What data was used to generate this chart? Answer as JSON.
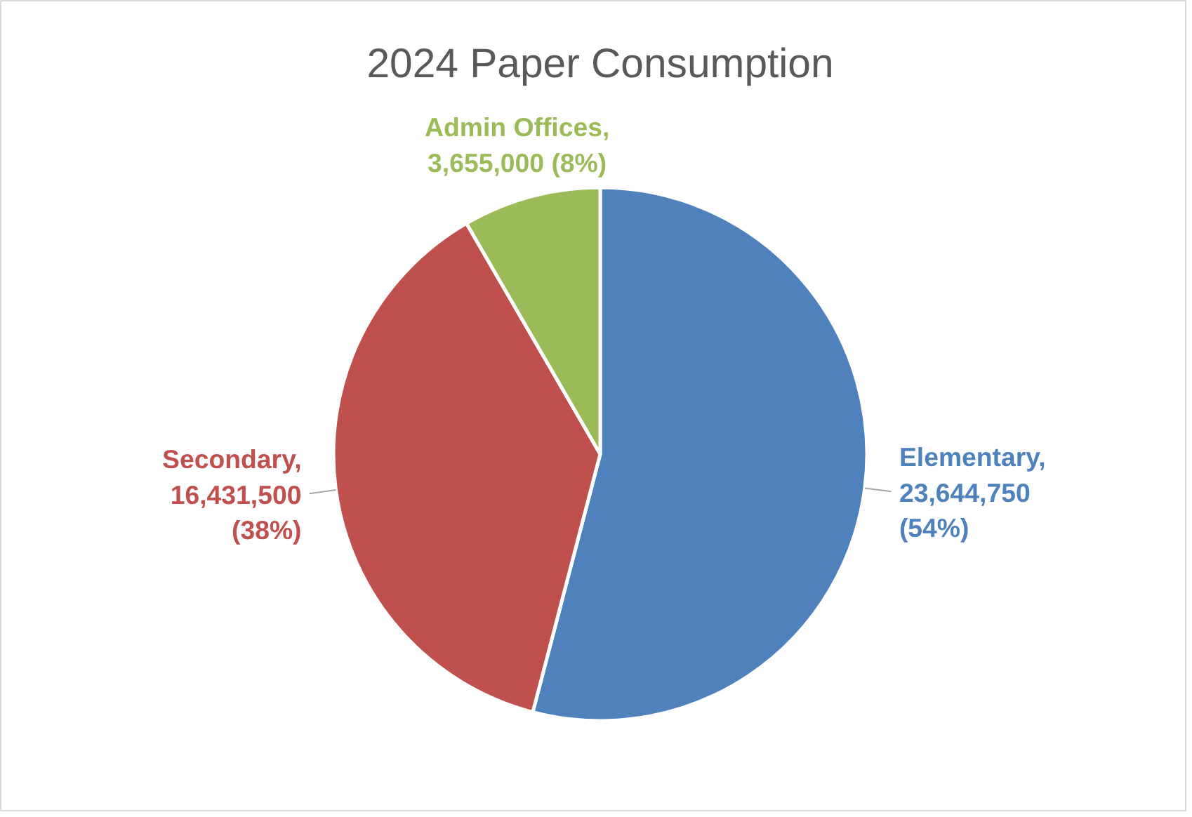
{
  "chart_data": {
    "type": "pie",
    "title": "2024 Paper Consumption",
    "categories": [
      "Elementary",
      "Secondary",
      "Admin Offices"
    ],
    "values": [
      23644750,
      16431500,
      3655000
    ],
    "colors": [
      "#4f81bd",
      "#c0504d",
      "#9bbb59"
    ],
    "value_labels": [
      ", 23,644,750 (54%)",
      ", 16,431,500 (38%)",
      ", 3,655,000 (8%)"
    ]
  }
}
